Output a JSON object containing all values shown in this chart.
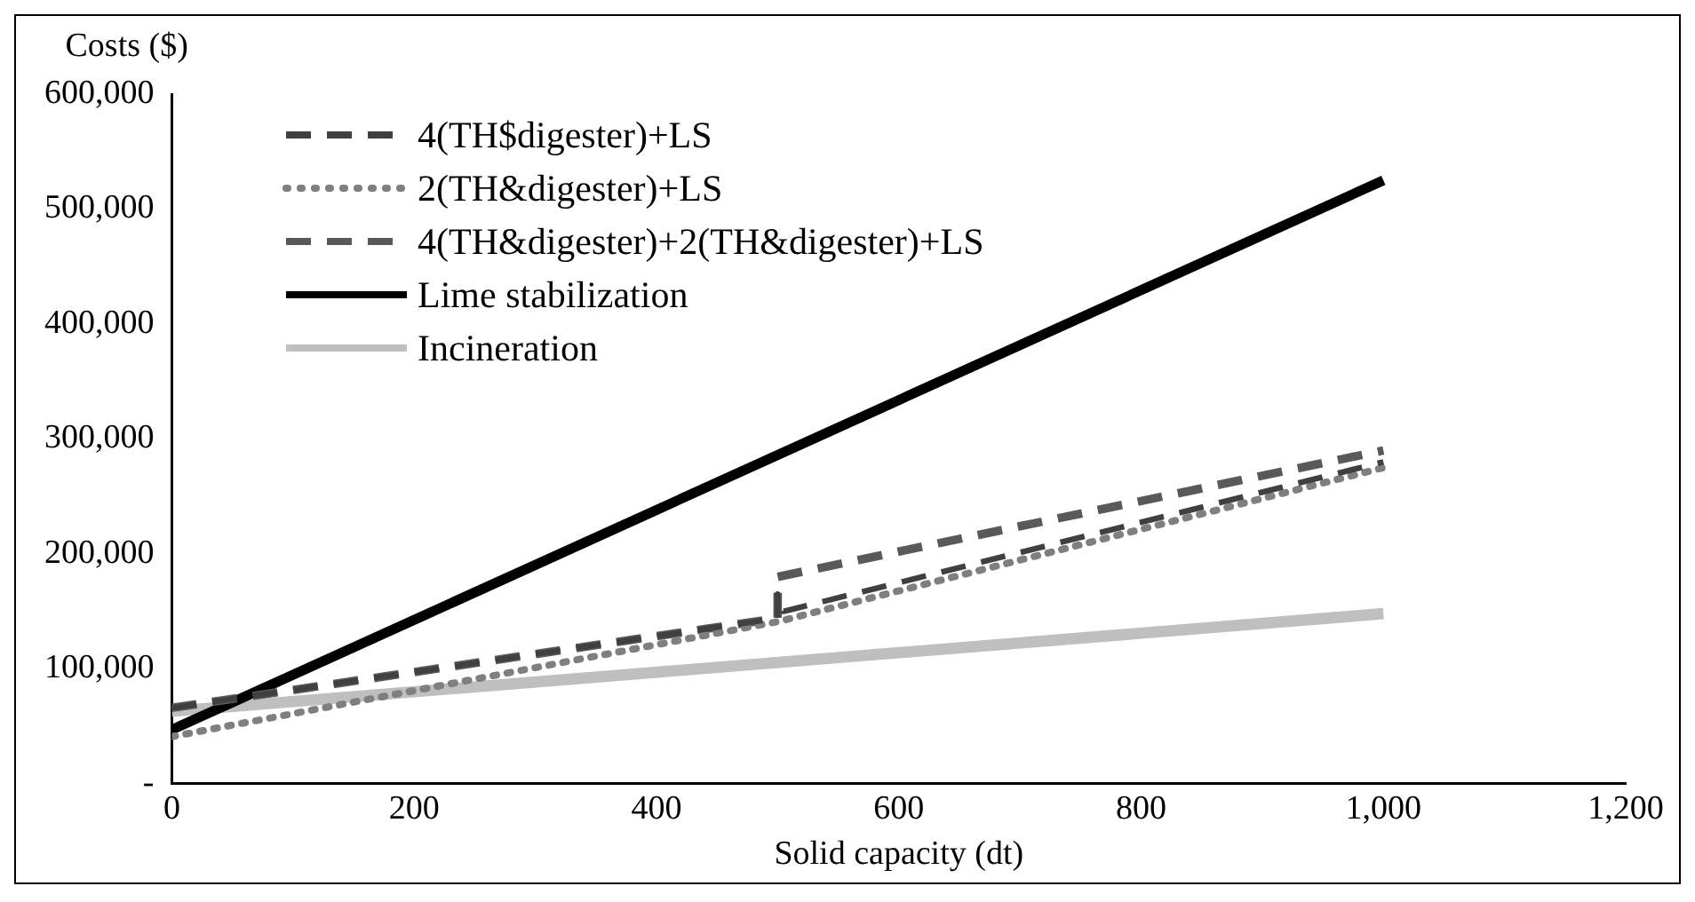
{
  "chart_data": {
    "type": "line",
    "xlabel": "Solid capacity (dt)",
    "ylabel": "Costs ($)",
    "legend": "top left",
    "grid": false,
    "xlim": [
      0,
      1200
    ],
    "xticks": [
      0,
      200,
      400,
      600,
      800,
      {
        "value": 1000,
        "label": "1,000"
      },
      {
        "value": 1200,
        "label": "1,200"
      }
    ],
    "ylim": [
      0,
      600000
    ],
    "yticks": [
      {
        "value": 0,
        "label": "-"
      },
      {
        "value": 100000,
        "label": "100,000"
      },
      {
        "value": 200000,
        "label": "200,000"
      },
      {
        "value": 300000,
        "label": "300,000"
      },
      {
        "value": 400000,
        "label": "400,000"
      },
      {
        "value": 500000,
        "label": "500,000"
      },
      {
        "value": 600000,
        "label": "600,000"
      }
    ],
    "series": [
      {
        "name": "4(TH$digester)+LS",
        "color": "#404040",
        "line_style": "dashed",
        "x": [
          0,
          500,
          500,
          505,
          1000
        ],
        "values": [
          66000,
          144000,
          165000,
          150000,
          280000
        ]
      },
      {
        "name": "2(TH&digester)+LS",
        "color": "#7f7f7f",
        "line_style": "dotted",
        "x": [
          0,
          500,
          1000
        ],
        "values": [
          41000,
          141000,
          275000
        ]
      },
      {
        "name": "4(TH&digester)+2(TH&digester)+LS",
        "color": "#595959",
        "line_style": "dashed",
        "x": [
          0,
          500,
          500,
          1000
        ],
        "values": [
          66000,
          144000,
          180000,
          290000
        ]
      },
      {
        "name": "Lime stabilization",
        "color": "#000000",
        "line_style": "solid",
        "x": [
          0,
          1000
        ],
        "values": [
          47000,
          525000
        ]
      },
      {
        "name": "Incineration",
        "color": "#bfbfbf",
        "line_style": "solid",
        "x": [
          0,
          1000
        ],
        "values": [
          63000,
          148000
        ]
      }
    ]
  }
}
